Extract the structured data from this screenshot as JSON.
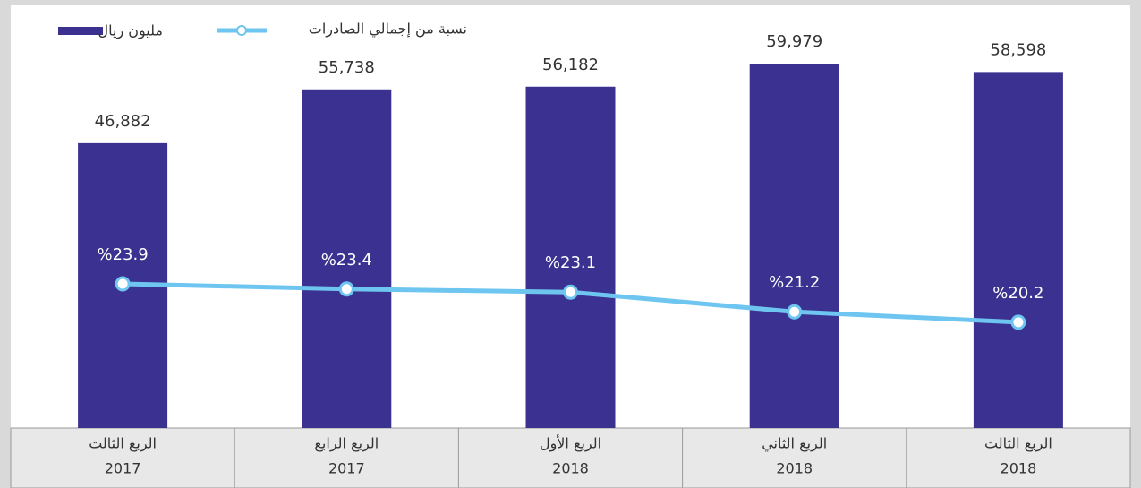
{
  "chart_data": {
    "type": "bar-line",
    "categories": [
      [
        "الربع الثالث",
        "2017"
      ],
      [
        "الربع الرابع",
        "2017"
      ],
      [
        "الربع الأول",
        "2018"
      ],
      [
        "الربع الثاني",
        "2018"
      ],
      [
        "الربع الثالث",
        "2018"
      ]
    ],
    "series": [
      {
        "name": "مليون ريال",
        "color": "#3a3190",
        "type": "bar",
        "values": [
          46882,
          55738,
          56182,
          59979,
          58598
        ],
        "value_labels": [
          "46,882",
          "55,738",
          "56,182",
          "59,979",
          "58,598"
        ]
      },
      {
        "name": "نسبة من إجمالي الصادرات",
        "color": "#6ec6f0",
        "type": "line",
        "axis": "y2",
        "values": [
          23.9,
          23.4,
          23.1,
          21.2,
          20.2
        ],
        "value_labels": [
          "%23.9",
          "%23.4",
          "%23.1",
          "%21.2",
          "%20.2"
        ]
      }
    ],
    "ylim": [
      0,
      70000
    ],
    "y2lim": [
      10,
      51
    ]
  }
}
